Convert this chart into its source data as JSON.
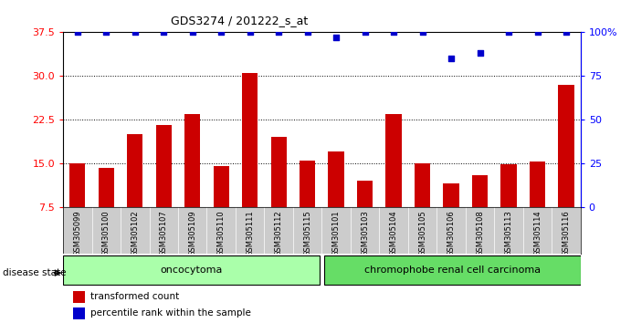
{
  "title": "GDS3274 / 201222_s_at",
  "categories": [
    "GSM305099",
    "GSM305100",
    "GSM305102",
    "GSM305107",
    "GSM305109",
    "GSM305110",
    "GSM305111",
    "GSM305112",
    "GSM305115",
    "GSM305101",
    "GSM305103",
    "GSM305104",
    "GSM305105",
    "GSM305106",
    "GSM305108",
    "GSM305113",
    "GSM305114",
    "GSM305116"
  ],
  "bar_values": [
    15.0,
    14.2,
    20.0,
    21.5,
    23.5,
    14.5,
    30.5,
    19.5,
    15.5,
    17.0,
    12.0,
    23.5,
    15.0,
    11.5,
    13.0,
    14.8,
    15.3,
    28.5
  ],
  "percentile_values": [
    100,
    100,
    100,
    100,
    100,
    100,
    100,
    100,
    100,
    97,
    100,
    100,
    100,
    85,
    88,
    100,
    100,
    100
  ],
  "bar_color": "#cc0000",
  "dot_color": "#0000cc",
  "ylim_left": [
    7.5,
    37.5
  ],
  "ylim_right": [
    0,
    100
  ],
  "yticks_left": [
    7.5,
    15.0,
    22.5,
    30.0,
    37.5
  ],
  "yticks_right": [
    0,
    25,
    50,
    75,
    100
  ],
  "grid_lines": [
    15.0,
    22.5,
    30.0
  ],
  "oncocytoma_label": "oncocytoma",
  "carcinoma_label": "chromophobe renal cell carcinoma",
  "disease_state_label": "disease state",
  "legend_bar_label": "transformed count",
  "legend_dot_label": "percentile rank within the sample",
  "bg_color": "#ffffff",
  "label_area_color": "#cccccc",
  "oncocytoma_fill": "#aaffaa",
  "carcinoma_fill": "#66dd66",
  "bar_width": 0.55,
  "n_oncocytoma": 9,
  "n_total": 18
}
